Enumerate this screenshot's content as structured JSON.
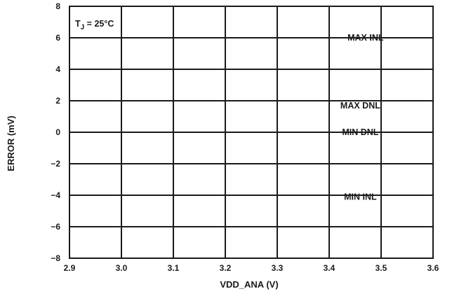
{
  "chart_data": {
    "type": "line",
    "title": "",
    "xlabel": "VDD_ANA (V)",
    "ylabel": "ERROR (mV)",
    "xlim": [
      2.9,
      3.6
    ],
    "ylim": [
      -8,
      8
    ],
    "x_ticks": [
      "2.9",
      "3.0",
      "3.1",
      "3.2",
      "3.3",
      "3.4",
      "3.5",
      "3.6"
    ],
    "y_ticks": [
      "8",
      "6",
      "4",
      "2",
      "0",
      "−2",
      "−4",
      "−6",
      "−8"
    ],
    "grid": true,
    "annotation": "T_J = 25°C",
    "annotation_parts": {
      "base": "T",
      "sub": "J",
      "rest": " = 25°C"
    },
    "series": [
      {
        "name": "MAX INL",
        "x": [
          2.9,
          3.6
        ],
        "values": [
          6.0,
          6.0
        ],
        "label_x": 3.47,
        "label_y": 6.0
      },
      {
        "name": "MAX DNL",
        "x": [
          2.9,
          3.6
        ],
        "values": [
          2.0,
          2.0
        ],
        "label_x": 3.46,
        "label_y": 1.7
      },
      {
        "name": "MIN DNL",
        "x": [
          2.9,
          3.6
        ],
        "values": [
          0.0,
          0.0
        ],
        "label_x": 3.46,
        "label_y": 0.0
      },
      {
        "name": "MIN INL",
        "x": [
          2.9,
          3.6
        ],
        "values": [
          -4.0,
          -4.0
        ],
        "label_x": 3.46,
        "label_y": -4.1
      }
    ],
    "line_color": "#1a1a1a"
  }
}
